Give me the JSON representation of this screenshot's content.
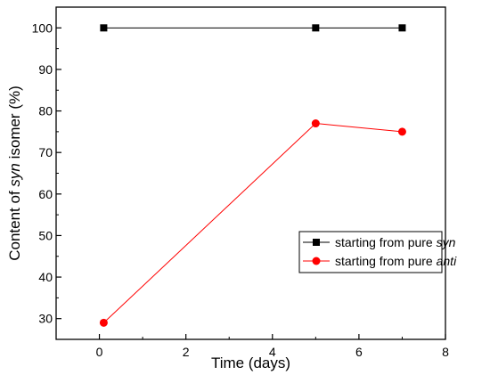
{
  "chart_data": {
    "type": "line",
    "xlabel": "Time (days)",
    "ylabel": {
      "prefix": "Content of ",
      "italic": "syn",
      "suffix": " isomer (%)"
    },
    "xlim": [
      -1,
      8
    ],
    "ylim": [
      25,
      105
    ],
    "x_ticks": [
      0,
      2,
      4,
      6,
      8
    ],
    "y_ticks": [
      30,
      40,
      50,
      60,
      70,
      80,
      90,
      100
    ],
    "grid": false,
    "legend_position": "lower-right",
    "series": [
      {
        "name": {
          "prefix": "starting from pure ",
          "italic": "syn"
        },
        "color": "#000000",
        "marker": "square",
        "x": [
          0.1,
          5,
          7
        ],
        "y": [
          100,
          100,
          100
        ]
      },
      {
        "name": {
          "prefix": "starting from pure ",
          "italic": "anti"
        },
        "color": "#ff0000",
        "marker": "circle",
        "x": [
          0.1,
          5,
          7
        ],
        "y": [
          29,
          77,
          75
        ]
      }
    ]
  }
}
